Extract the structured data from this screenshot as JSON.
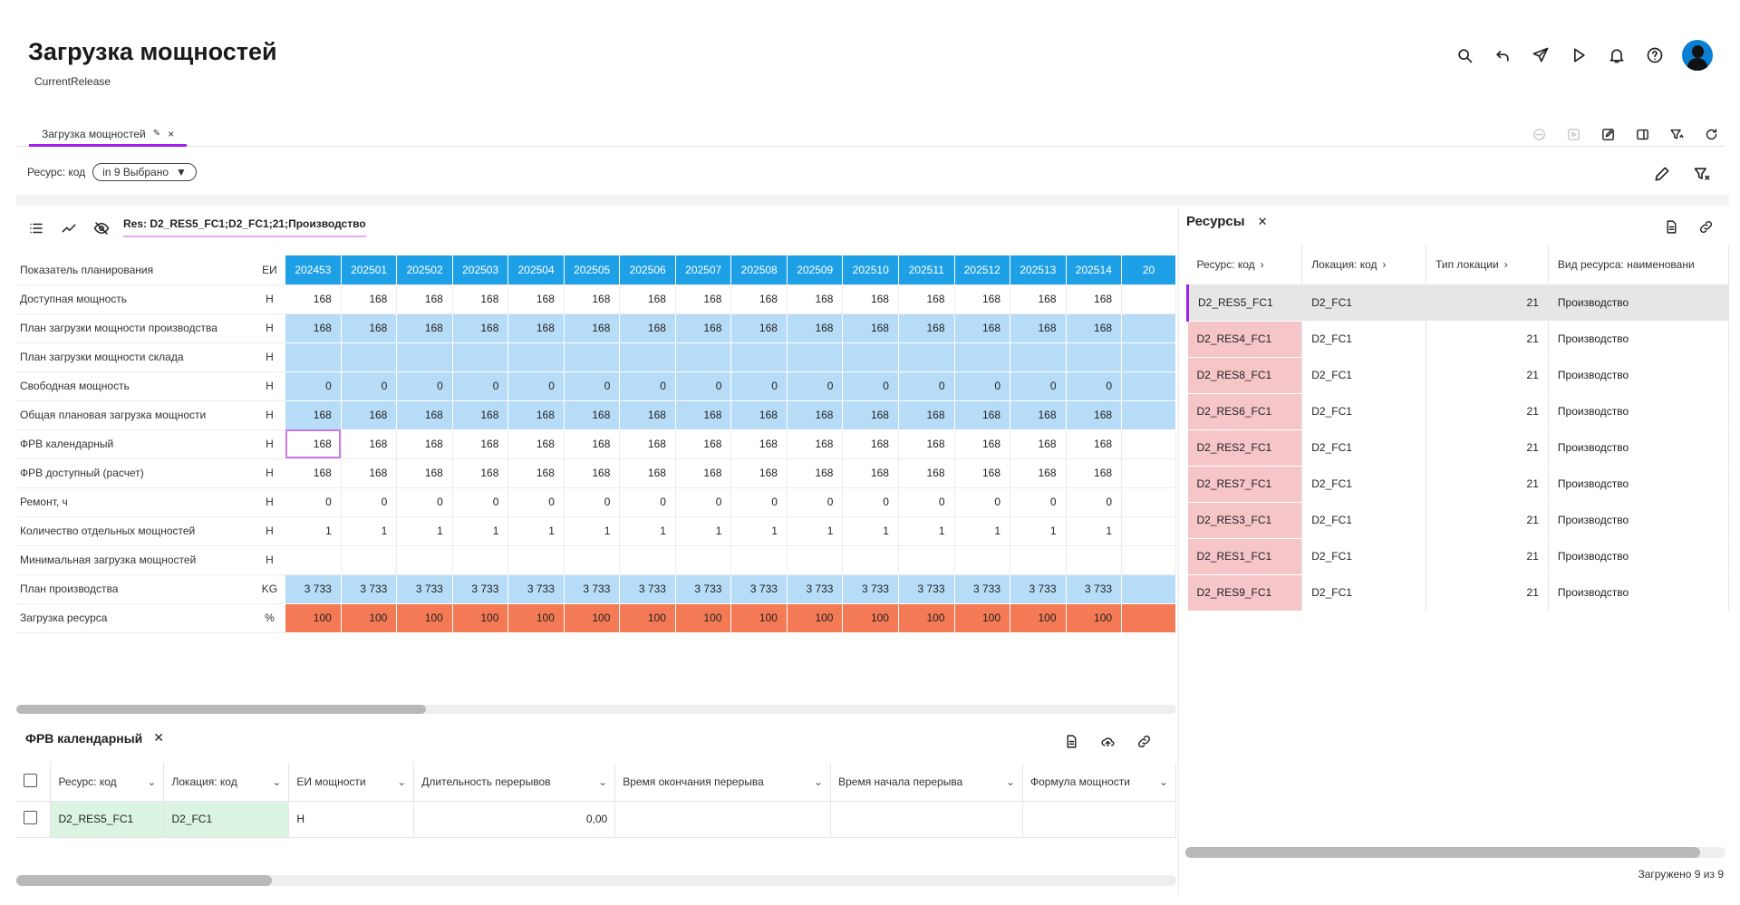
{
  "header": {
    "title": "Загрузка мощностей",
    "subtitle": "CurrentRelease"
  },
  "tab": {
    "label": "Загрузка мощностей",
    "close": "×"
  },
  "filter": {
    "label": "Ресурс: код",
    "chip": "in 9 Выбрано"
  },
  "main": {
    "res_label": "Res: D2_RES5_FC1;D2_FC1;21;Производство",
    "header_label": "Показатель планирования",
    "header_unit": "ЕИ",
    "periods": [
      "202453",
      "202501",
      "202502",
      "202503",
      "202504",
      "202505",
      "202506",
      "202507",
      "202508",
      "202509",
      "202510",
      "202511",
      "202512",
      "202513",
      "202514",
      "20"
    ],
    "rows": [
      {
        "label": "Доступная мощность",
        "unit": "H",
        "style": "plain",
        "values": [
          "168",
          "168",
          "168",
          "168",
          "168",
          "168",
          "168",
          "168",
          "168",
          "168",
          "168",
          "168",
          "168",
          "168",
          "168",
          ""
        ]
      },
      {
        "label": "План загрузки мощности производства",
        "unit": "H",
        "style": "blue",
        "values": [
          "168",
          "168",
          "168",
          "168",
          "168",
          "168",
          "168",
          "168",
          "168",
          "168",
          "168",
          "168",
          "168",
          "168",
          "168",
          ""
        ]
      },
      {
        "label": "План загрузки мощности склада",
        "unit": "H",
        "style": "blue",
        "values": [
          "",
          "",
          "",
          "",
          "",
          "",
          "",
          "",
          "",
          "",
          "",
          "",
          "",
          "",
          "",
          ""
        ]
      },
      {
        "label": "Свободная мощность",
        "unit": "H",
        "style": "blue",
        "values": [
          "0",
          "0",
          "0",
          "0",
          "0",
          "0",
          "0",
          "0",
          "0",
          "0",
          "0",
          "0",
          "0",
          "0",
          "0",
          ""
        ]
      },
      {
        "label": "Общая плановая загрузка мощности",
        "unit": "H",
        "style": "blue",
        "values": [
          "168",
          "168",
          "168",
          "168",
          "168",
          "168",
          "168",
          "168",
          "168",
          "168",
          "168",
          "168",
          "168",
          "168",
          "168",
          ""
        ]
      },
      {
        "label": "ФРВ календарный",
        "unit": "H",
        "style": "plain",
        "values": [
          "168",
          "168",
          "168",
          "168",
          "168",
          "168",
          "168",
          "168",
          "168",
          "168",
          "168",
          "168",
          "168",
          "168",
          "168",
          ""
        ]
      },
      {
        "label": "ФРВ доступный (расчет)",
        "unit": "H",
        "style": "plain",
        "values": [
          "168",
          "168",
          "168",
          "168",
          "168",
          "168",
          "168",
          "168",
          "168",
          "168",
          "168",
          "168",
          "168",
          "168",
          "168",
          ""
        ]
      },
      {
        "label": "Ремонт, ч",
        "unit": "H",
        "style": "plain",
        "values": [
          "0",
          "0",
          "0",
          "0",
          "0",
          "0",
          "0",
          "0",
          "0",
          "0",
          "0",
          "0",
          "0",
          "0",
          "0",
          ""
        ]
      },
      {
        "label": "Количество отдельных мощностей",
        "unit": "H",
        "style": "plain",
        "values": [
          "1",
          "1",
          "1",
          "1",
          "1",
          "1",
          "1",
          "1",
          "1",
          "1",
          "1",
          "1",
          "1",
          "1",
          "1",
          ""
        ]
      },
      {
        "label": "Минимальная загрузка мощностей",
        "unit": "H",
        "style": "plain",
        "values": [
          "",
          "",
          "",
          "",
          "",
          "",
          "",
          "",
          "",
          "",
          "",
          "",
          "",
          "",
          "",
          ""
        ]
      },
      {
        "label": "План производства",
        "unit": "KG",
        "style": "blue",
        "values": [
          "3 733",
          "3 733",
          "3 733",
          "3 733",
          "3 733",
          "3 733",
          "3 733",
          "3 733",
          "3 733",
          "3 733",
          "3 733",
          "3 733",
          "3 733",
          "3 733",
          "3 733",
          ""
        ]
      },
      {
        "label": "Загрузка ресурса",
        "unit": "%",
        "style": "orange",
        "values": [
          "100",
          "100",
          "100",
          "100",
          "100",
          "100",
          "100",
          "100",
          "100",
          "100",
          "100",
          "100",
          "100",
          "100",
          "100",
          ""
        ]
      }
    ]
  },
  "bottom": {
    "title": "ФРВ календарный",
    "columns": [
      "Ресурс: код",
      "Локация: код",
      "ЕИ мощности",
      "Длительность перерывов",
      "Время окончания перерыва",
      "Время начала перерыва",
      "Формула мощности"
    ],
    "row": [
      "D2_RES5_FC1",
      "D2_FC1",
      "H",
      "0,00",
      "",
      "",
      ""
    ]
  },
  "resources": {
    "title": "Ресурсы",
    "columns": [
      "Ресурс: код",
      "Локация: код",
      "Тип локации",
      "Вид ресурса: наименовани"
    ],
    "rows": [
      [
        "D2_RES5_FC1",
        "D2_FC1",
        "21",
        "Производство"
      ],
      [
        "D2_RES4_FC1",
        "D2_FC1",
        "21",
        "Производство"
      ],
      [
        "D2_RES8_FC1",
        "D2_FC1",
        "21",
        "Производство"
      ],
      [
        "D2_RES6_FC1",
        "D2_FC1",
        "21",
        "Производство"
      ],
      [
        "D2_RES2_FC1",
        "D2_FC1",
        "21",
        "Производство"
      ],
      [
        "D2_RES7_FC1",
        "D2_FC1",
        "21",
        "Производство"
      ],
      [
        "D2_RES3_FC1",
        "D2_FC1",
        "21",
        "Производство"
      ],
      [
        "D2_RES1_FC1",
        "D2_FC1",
        "21",
        "Производство"
      ],
      [
        "D2_RES9_FC1",
        "D2_FC1",
        "21",
        "Производство"
      ]
    ],
    "loaded": "Загружено 9 из 9"
  }
}
